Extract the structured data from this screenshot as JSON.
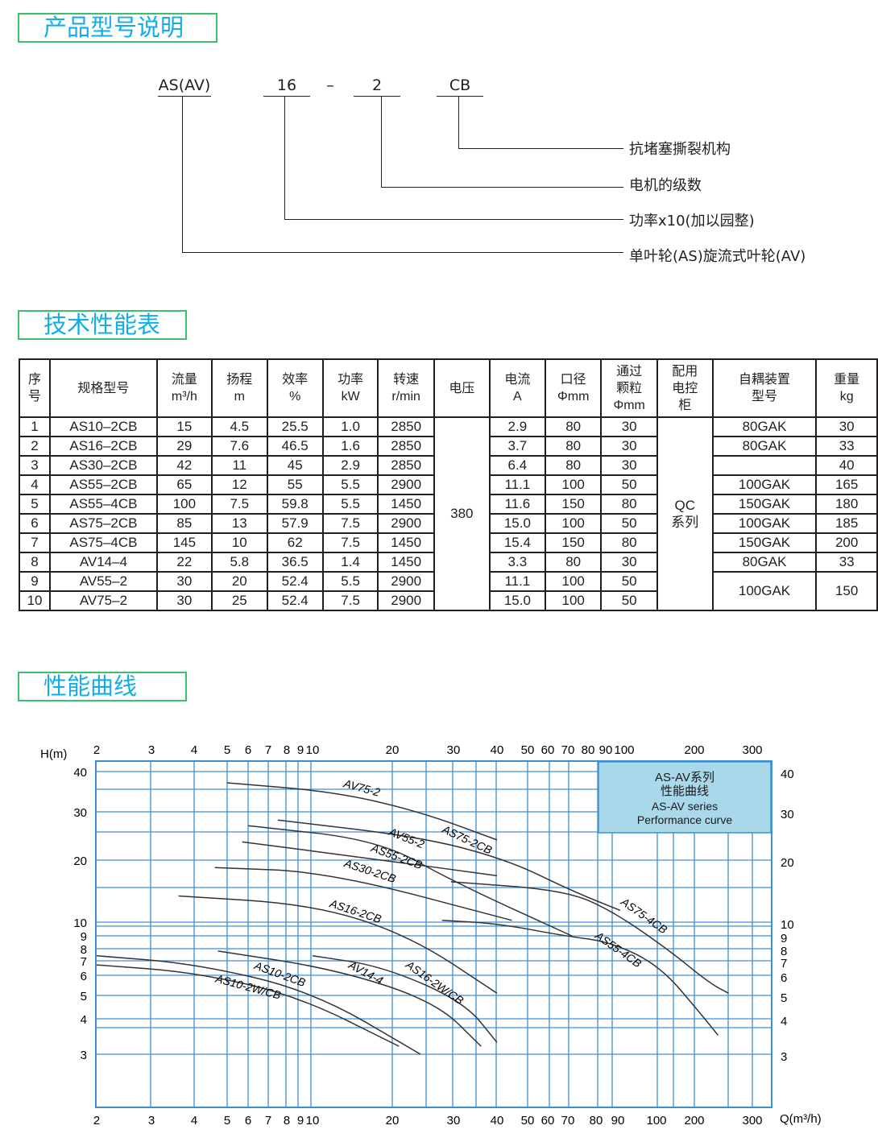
{
  "section1": {
    "title": "产品型号说明"
  },
  "model_code": {
    "parts": [
      "AS(AV)",
      "16",
      "–",
      "2",
      "CB"
    ],
    "descriptions": [
      "抗堵塞撕裂机构",
      "电机的级数",
      "功率x10(加以园整)",
      "单叶轮(AS)旋流式叶轮(AV)"
    ]
  },
  "section2": {
    "title": "技术性能表"
  },
  "table": {
    "headers": [
      "序\n号",
      "规格型号",
      "流量\nm³/h",
      "扬程\nm",
      "效率\n%",
      "功率\nkW",
      "转速\nr/min",
      "电压",
      "电流\nA",
      "口径\nΦmm",
      "通过\n颗粒\nΦmm",
      "配用\n电控\n柜",
      "自耦装置\n型号",
      "重量\nkg"
    ],
    "voltage": "380",
    "control_cabinet": "QC\n系列",
    "rows": [
      [
        "1",
        "AS10–2CB",
        "15",
        "4.5",
        "25.5",
        "1.0",
        "2850",
        "2.9",
        "80",
        "30",
        "80GAK",
        "30"
      ],
      [
        "2",
        "AS16–2CB",
        "29",
        "7.6",
        "46.5",
        "1.6",
        "2850",
        "3.7",
        "80",
        "30",
        "80GAK",
        "33"
      ],
      [
        "3",
        "AS30–2CB",
        "42",
        "11",
        "45",
        "2.9",
        "2850",
        "6.4",
        "80",
        "30",
        "",
        "40"
      ],
      [
        "4",
        "AS55–2CB",
        "65",
        "12",
        "55",
        "5.5",
        "2900",
        "11.1",
        "100",
        "50",
        "100GAK",
        "165"
      ],
      [
        "5",
        "AS55–4CB",
        "100",
        "7.5",
        "59.8",
        "5.5",
        "1450",
        "11.6",
        "150",
        "80",
        "150GAK",
        "180"
      ],
      [
        "6",
        "AS75–2CB",
        "85",
        "13",
        "57.9",
        "7.5",
        "2900",
        "15.0",
        "100",
        "50",
        "100GAK",
        "185"
      ],
      [
        "7",
        "AS75–4CB",
        "145",
        "10",
        "62",
        "7.5",
        "1450",
        "15.4",
        "150",
        "80",
        "150GAK",
        "200"
      ],
      [
        "8",
        "AV14–4",
        "22",
        "5.8",
        "36.5",
        "1.4",
        "1450",
        "3.3",
        "80",
        "30",
        "80GAK",
        "33"
      ],
      [
        "9",
        "AV55–2",
        "30",
        "20",
        "52.4",
        "5.5",
        "2900",
        "11.1",
        "100",
        "50",
        "100GAK",
        "150"
      ],
      [
        "10",
        "AV75–2",
        "30",
        "25",
        "52.4",
        "7.5",
        "2900",
        "15.0",
        "100",
        "50",
        "",
        ""
      ]
    ]
  },
  "section3": {
    "title": "性能曲线"
  },
  "chart_data": {
    "type": "line",
    "ylabel": "H(m)",
    "xlabel": "Q(m³/h)",
    "x_ticks": [
      2,
      3,
      4,
      5,
      6,
      7,
      8,
      9,
      10,
      20,
      30,
      40,
      50,
      60,
      70,
      80,
      90,
      100,
      200,
      300
    ],
    "y_ticks": [
      3,
      4,
      5,
      6,
      7,
      8,
      9,
      10,
      20,
      30,
      40
    ],
    "xlim": [
      2,
      300
    ],
    "ylim": [
      2.2,
      44
    ],
    "x_scale": "log",
    "y_scale": "log",
    "grid": true,
    "legend_box": {
      "lines": [
        "AS-AV系列",
        "性能曲线",
        "AS-AV series",
        "Performance curve"
      ],
      "position": "top-right",
      "color": "#a8d8ea"
    },
    "grid_color": "#3f8fd2",
    "series": [
      {
        "name": "AV75-2",
        "points": [
          [
            5,
            36.9
          ],
          [
            12.2,
            34.6
          ],
          [
            24.1,
            30
          ],
          [
            40,
            23.7
          ]
        ]
      },
      {
        "name": "AS75-2CB",
        "points": [
          [
            7.5,
            28
          ],
          [
            24.1,
            24.3
          ],
          [
            43,
            20.1
          ],
          [
            71.8,
            14.2
          ],
          [
            97.7,
            11.4
          ]
        ]
      },
      {
        "name": "AV55-2",
        "points": [
          [
            5.7,
            23.3
          ],
          [
            17.7,
            20.1
          ],
          [
            40,
            16.8
          ]
        ]
      },
      {
        "name": "AS55-2CB",
        "points": [
          [
            6,
            26.7
          ],
          [
            17.7,
            23.7
          ],
          [
            30,
            15.7
          ],
          [
            71.8,
            9
          ]
        ]
      },
      {
        "name": "AS30-2CB",
        "points": [
          [
            4.6,
            18.4
          ],
          [
            11.5,
            17.5
          ],
          [
            44.6,
            10.2
          ]
        ]
      },
      {
        "name": "AS16-2CB",
        "points": [
          [
            3.6,
            13.4
          ],
          [
            10,
            12.2
          ],
          [
            22.5,
            9
          ],
          [
            40,
            5.1
          ]
        ]
      },
      {
        "name": "AS75-4CB",
        "points": [
          [
            29.5,
            15.7
          ],
          [
            68,
            14.3
          ],
          [
            93,
            11.4
          ],
          [
            155,
            7.9
          ],
          [
            222,
            5.6
          ],
          [
            254,
            5.1
          ]
        ]
      },
      {
        "name": "AS55-4CB",
        "points": [
          [
            27.8,
            10.2
          ],
          [
            40.2,
            9.9
          ],
          [
            68,
            9
          ],
          [
            93,
            8.5
          ],
          [
            143,
            6.6
          ],
          [
            209,
            4.2
          ],
          [
            236,
            3.5
          ]
        ]
      },
      {
        "name": "AS10-2CB",
        "points": [
          [
            2,
            7.4
          ],
          [
            4,
            6.8
          ],
          [
            10,
            5.2
          ],
          [
            24.1,
            3
          ]
        ]
      },
      {
        "name": "AS10-2W/CB",
        "points": [
          [
            2,
            6.7
          ],
          [
            4,
            6.2
          ],
          [
            8.7,
            5
          ],
          [
            20.9,
            3.2
          ]
        ]
      },
      {
        "name": "AV14-4",
        "points": [
          [
            4.7,
            7.8
          ],
          [
            12.2,
            6.4
          ],
          [
            26.7,
            4.7
          ],
          [
            36,
            3.2
          ]
        ]
      },
      {
        "name": "AS16-2W/CB",
        "points": [
          [
            10,
            7.4
          ],
          [
            18.4,
            6.6
          ],
          [
            32.2,
            4.7
          ],
          [
            40,
            3.3
          ]
        ]
      }
    ]
  }
}
